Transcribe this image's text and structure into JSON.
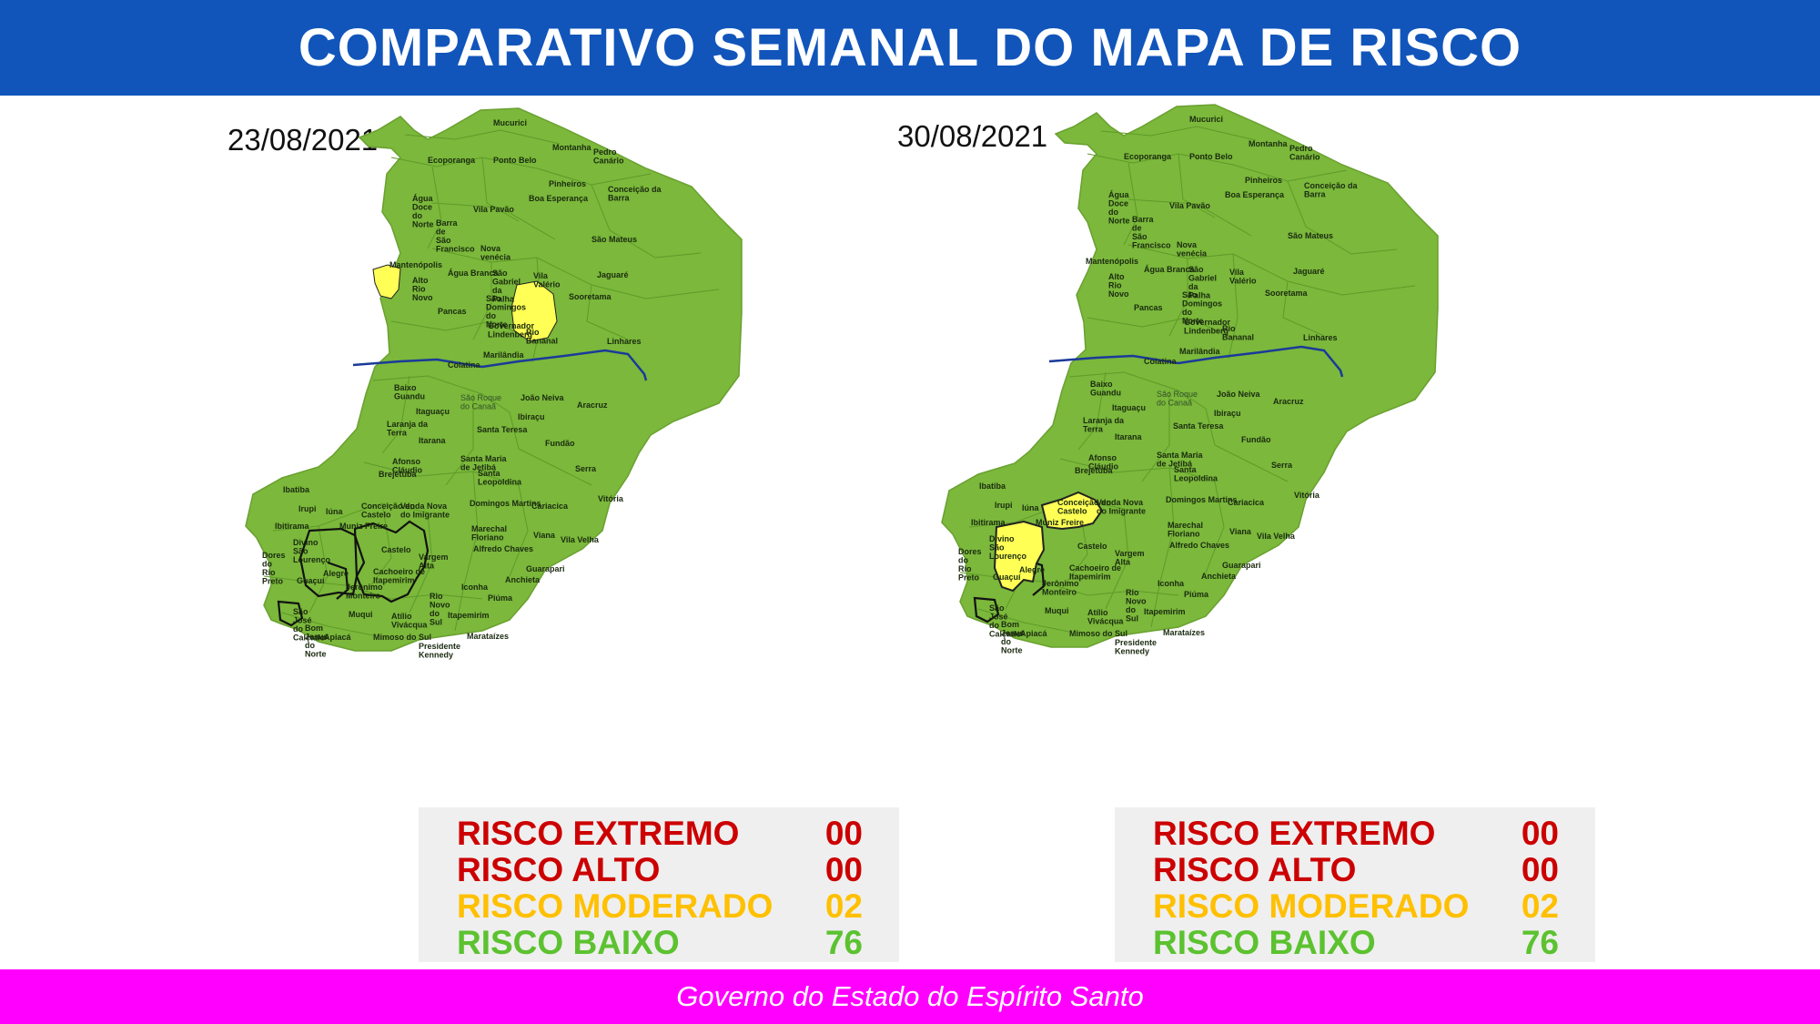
{
  "title": "COMPARATIVO SEMANAL DO MAPA DE RISCO",
  "footer": "Governo do Estado do Espírito Santo",
  "colors": {
    "header": "#1155bb",
    "footer": "#ff00ff",
    "risco_baixo_map": "#7bb83b",
    "risco_moderado_map": "#ffff55",
    "river": "#1a3a9a",
    "extremo": "#cc0000",
    "alto": "#cc0000",
    "moderado": "#ffc000",
    "baixo": "#5cc230"
  },
  "maps": [
    {
      "date": "23/08/2021",
      "moderate_municipalities": [
        "Alto Rio Novo",
        "Rio Bananal"
      ],
      "legend": [
        {
          "label": "RISCO EXTREMO",
          "value": "00",
          "level": "extremo"
        },
        {
          "label": "RISCO ALTO",
          "value": "00",
          "level": "alto"
        },
        {
          "label": "RISCO MODERADO",
          "value": "02",
          "level": "moderado"
        },
        {
          "label": "RISCO BAIXO",
          "value": "76",
          "level": "baixo"
        }
      ]
    },
    {
      "date": "30/08/2021",
      "moderate_municipalities": [
        "Alegre",
        "Castelo"
      ],
      "legend": [
        {
          "label": "RISCO EXTREMO",
          "value": "00",
          "level": "extremo"
        },
        {
          "label": "RISCO ALTO",
          "value": "00",
          "level": "alto"
        },
        {
          "label": "RISCO MODERADO",
          "value": "02",
          "level": "moderado"
        },
        {
          "label": "RISCO BAIXO",
          "value": "76",
          "level": "baixo"
        }
      ]
    }
  ],
  "cities": [
    "Mucurici",
    "Montanha",
    "Pedro Canário",
    "Ecoporanga",
    "Ponto Belo",
    "Pinheiros",
    "Conceição da Barra",
    "Água Doce do Norte",
    "Boa Esperança",
    "Vila Pavão",
    "Barra de São Francisco",
    "São Mateus",
    "Nova venécia",
    "Mantenópolis",
    "Água Branca",
    "São Gabriel da Palha",
    "Vila Valério",
    "Jaguaré",
    "Alto Rio Novo",
    "Sooretama",
    "São Domingos do Norte",
    "Pancas",
    "Governador Lindenberg",
    "Rio Bananal",
    "Linhares",
    "Marilândia",
    "Colatina",
    "Baixo Guandu",
    "São Roque do Canaã",
    "João Neiva",
    "Aracruz",
    "Itaguaçu",
    "Ibiraçu",
    "Laranja da Terra",
    "Santa Teresa",
    "Itarana",
    "Fundão",
    "Afonso Cláudio",
    "Santa Maria de Jetibá",
    "Serra",
    "Brejetuba",
    "Santa Leopoldina",
    "Ibatiba",
    "Vitória",
    "Irupi",
    "Iúna",
    "Conceição do Castelo",
    "Venda Nova do Imigrante",
    "Domingos Martins",
    "Cariacica",
    "Ibitirama",
    "Muniz Freire",
    "Marechal Floriano",
    "Viana",
    "Vila Velha",
    "Divino São Lourenço",
    "Castelo",
    "Alfredo Chaves",
    "Dores do Rio Preto",
    "Vargem Alta",
    "Guarapari",
    "Alegre",
    "Cachoeiro de Itapemirim",
    "Guaçuí",
    "Jerônimo Monteiro",
    "Iconha",
    "Anchieta",
    "Rio Novo do Sul",
    "Piúma",
    "São José do Calçado",
    "Muqui",
    "Atílio Vivácqua",
    "Itapemirim",
    "Bom Jesus do Norte",
    "Apiacá",
    "Mimoso do Sul",
    "Marataízes",
    "Presidente Kennedy"
  ]
}
